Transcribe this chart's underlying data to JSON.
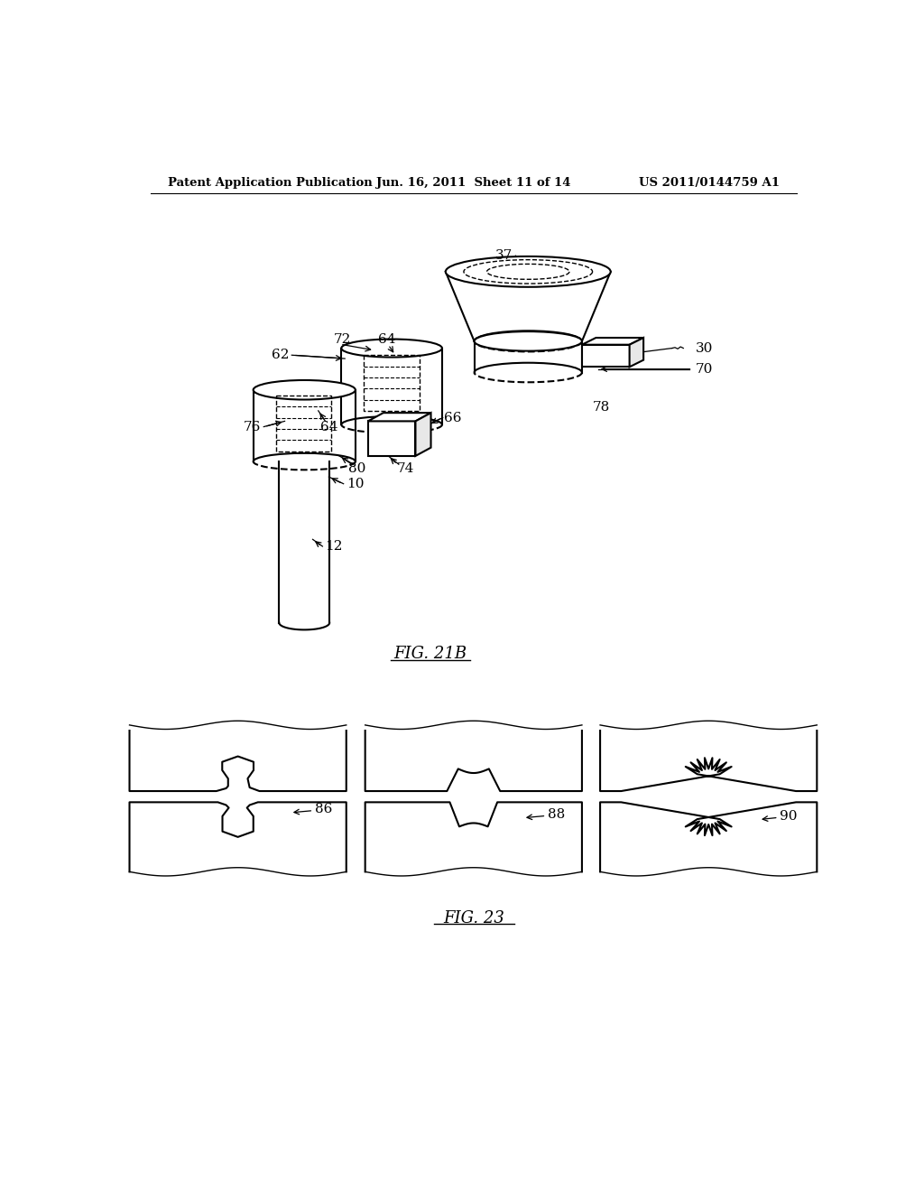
{
  "bg_color": "#ffffff",
  "header_left": "Patent Application Publication",
  "header_mid": "Jun. 16, 2011  Sheet 11 of 14",
  "header_right": "US 2011/0144759 A1",
  "fig21b_caption": "FIG. 21B",
  "fig23_caption": "FIG. 23"
}
